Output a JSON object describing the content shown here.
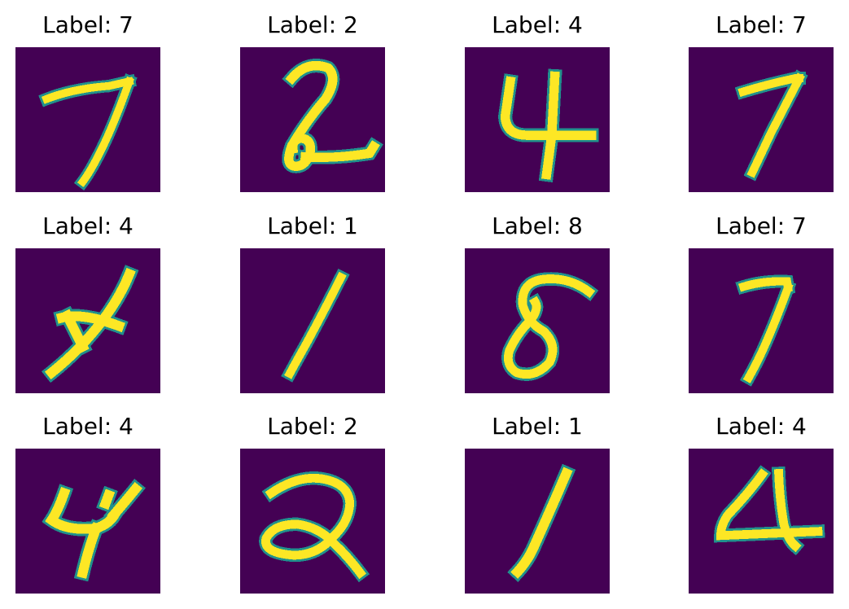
{
  "chart_data": {
    "type": "image_grid",
    "grid": {
      "rows": 3,
      "cols": 4
    },
    "colormap": {
      "background": "#440154",
      "mid": "#21918c",
      "high": "#fde725"
    },
    "image_size": "28x28 px",
    "title_prefix": "Label: ",
    "panels": [
      {
        "title": "Label: 7",
        "label": 7
      },
      {
        "title": "Label: 2",
        "label": 2
      },
      {
        "title": "Label: 4",
        "label": 4
      },
      {
        "title": "Label: 7",
        "label": 7
      },
      {
        "title": "Label: 4",
        "label": 4
      },
      {
        "title": "Label: 1",
        "label": 1
      },
      {
        "title": "Label: 8",
        "label": 8
      },
      {
        "title": "Label: 7",
        "label": 7
      },
      {
        "title": "Label: 4",
        "label": 4
      },
      {
        "title": "Label: 2",
        "label": 2
      },
      {
        "title": "Label: 1",
        "label": 1
      },
      {
        "title": "Label: 4",
        "label": 4
      }
    ]
  }
}
